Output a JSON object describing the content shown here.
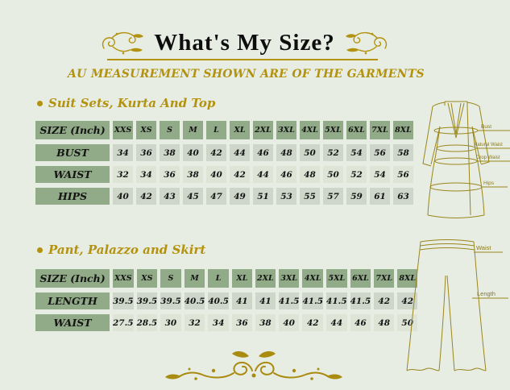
{
  "page": {
    "title": "What's My Size?",
    "subtitle": "AU MEASUREMENT SHOWN ARE OF THE GARMENTS"
  },
  "colors": {
    "background": "#e7ede3",
    "table_header_green": "#91aa87",
    "cell_light": "#cdd6c8",
    "cell_lighter": "#dee5d7",
    "gold_accent": "#b2920e",
    "olive_lineart": "#9a861c",
    "title_text": "#0d0d0d"
  },
  "sections": [
    {
      "heading": "Suit Sets, Kurta And Top"
    },
    {
      "heading": "Pant, Palazzo and Skirt"
    }
  ],
  "chart_data": [
    {
      "type": "table",
      "title": "Suit Sets, Kurta And Top",
      "header": [
        "SIZE (Inch)",
        "XXS",
        "XS",
        "S",
        "M",
        "L",
        "XL",
        "2XL",
        "3XL",
        "4XL",
        "5XL",
        "6XL",
        "7XL",
        "8XL"
      ],
      "rows": [
        {
          "label": "BUST",
          "values": [
            34,
            36,
            38,
            40,
            42,
            44,
            46,
            48,
            50,
            52,
            54,
            56,
            58
          ]
        },
        {
          "label": "WAIST",
          "values": [
            32,
            34,
            36,
            38,
            40,
            42,
            44,
            46,
            48,
            50,
            52,
            54,
            56
          ]
        },
        {
          "label": "HIPS",
          "values": [
            40,
            42,
            43,
            45,
            47,
            49,
            51,
            53,
            55,
            57,
            59,
            61,
            63
          ]
        }
      ]
    },
    {
      "type": "table",
      "title": "Pant, Palazzo and Skirt",
      "header": [
        "SIZE (Inch)",
        "XXS",
        "XS",
        "S",
        "M",
        "L",
        "XL",
        "2XL",
        "3XL",
        "4XL",
        "5XL",
        "6XL",
        "7XL",
        "8XL"
      ],
      "rows": [
        {
          "label": "LENGTH",
          "values": [
            39.5,
            39.5,
            39.5,
            40.5,
            40.5,
            41,
            41,
            41.5,
            41.5,
            41.5,
            41.5,
            42,
            42
          ]
        },
        {
          "label": "WAIST",
          "values": [
            27.5,
            28.5,
            30,
            32,
            34,
            36,
            38,
            40,
            42,
            44,
            46,
            48,
            50
          ]
        }
      ]
    }
  ],
  "kurta_diagram": {
    "labels": [
      "Bust",
      "Natural Waist",
      "Drop Waist",
      "Hips"
    ]
  },
  "pant_diagram": {
    "labels": [
      "Waist",
      "Length"
    ]
  }
}
